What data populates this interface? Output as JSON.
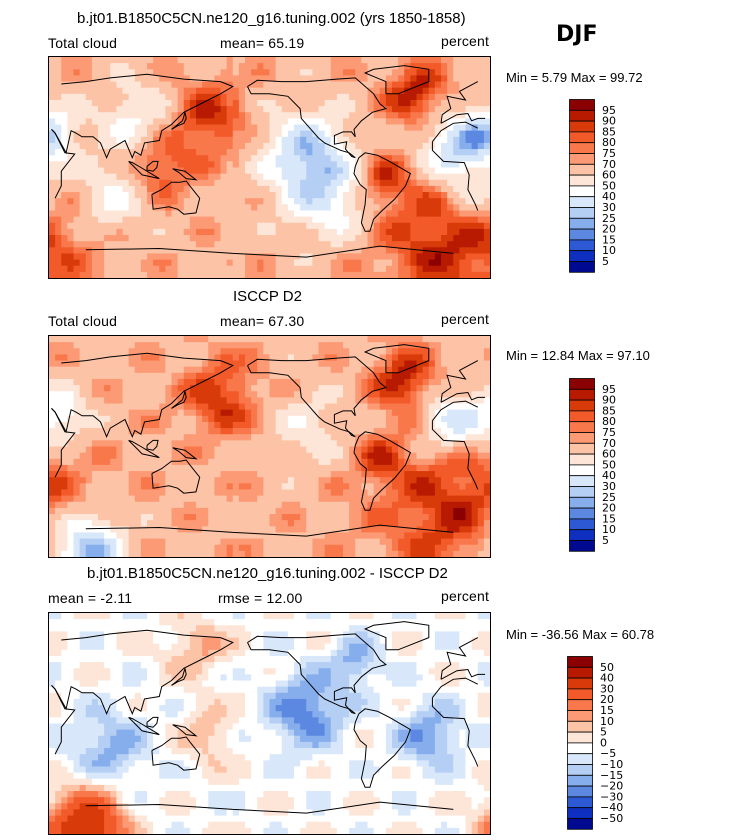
{
  "season": "DJF",
  "chart_data": [
    {
      "type": "heatmap",
      "title": "b.jt01.B1850C5CN.ne120_g16.tuning.002 (yrs 1850-1858)",
      "left_label": "Total cloud",
      "mean_label": "mean=  65.19",
      "units": "percent",
      "range_text": "Min =    5.79  Max =  99.72",
      "mean": 65.19,
      "min": 5.79,
      "max": 99.72,
      "colorbar": {
        "levels": [
          "95",
          "90",
          "85",
          "80",
          "75",
          "70",
          "60",
          "50",
          "40",
          "30",
          "25",
          "20",
          "15",
          "10",
          "5"
        ],
        "colors": [
          "#8b0000",
          "#b71a00",
          "#d93a0a",
          "#f25a2a",
          "#f9784b",
          "#fc9a75",
          "#fdc3a6",
          "#fde6d8",
          "#ffffff",
          "#d8e8fa",
          "#b4cef4",
          "#87aeec",
          "#5c88e2",
          "#2d5ad4",
          "#0f2fc0",
          "#000a90"
        ]
      },
      "fields": {
        "base": 68,
        "blobs": [
          {
            "lon": -120,
            "lat": 10,
            "r": 35,
            "amp": -38
          },
          {
            "lon": 0,
            "lat": 15,
            "r": 28,
            "amp": -38
          },
          {
            "lon": 30,
            "lat": 25,
            "r": 25,
            "amp": -32
          },
          {
            "lon": 100,
            "lat": 40,
            "r": 30,
            "amp": -20
          },
          {
            "lon": -100,
            "lat": -25,
            "r": 35,
            "amp": -25
          },
          {
            "lon": 15,
            "lat": -25,
            "r": 25,
            "amp": -20
          },
          {
            "lon": 80,
            "lat": -25,
            "r": 30,
            "amp": -22
          },
          {
            "lon": 160,
            "lat": 40,
            "r": 30,
            "amp": 22
          },
          {
            "lon": -30,
            "lat": 60,
            "r": 25,
            "amp": 25
          },
          {
            "lon": 120,
            "lat": 0,
            "r": 25,
            "amp": 20
          },
          {
            "lon": -60,
            "lat": -10,
            "r": 20,
            "amp": 20
          },
          {
            "lon": 0,
            "lat": -55,
            "r": 60,
            "amp": 25
          }
        ]
      }
    },
    {
      "type": "heatmap",
      "title": "ISCCP D2",
      "left_label": "Total cloud",
      "mean_label": "mean=  67.30",
      "units": "percent",
      "range_text": "Min =  12.84  Max =  97.10",
      "mean": 67.3,
      "min": 12.84,
      "max": 97.1,
      "colorbar": {
        "levels": [
          "95",
          "90",
          "85",
          "80",
          "75",
          "70",
          "60",
          "50",
          "40",
          "30",
          "25",
          "20",
          "15",
          "10",
          "5"
        ],
        "colors": [
          "#8b0000",
          "#b71a00",
          "#d93a0a",
          "#f25a2a",
          "#f9784b",
          "#fc9a75",
          "#fdc3a6",
          "#fde6d8",
          "#ffffff",
          "#d8e8fa",
          "#b4cef4",
          "#87aeec",
          "#5c88e2",
          "#2d5ad4",
          "#0f2fc0",
          "#000a90"
        ]
      },
      "fields": {
        "base": 68,
        "blobs": [
          {
            "lon": 0,
            "lat": 20,
            "r": 25,
            "amp": -35
          },
          {
            "lon": 40,
            "lat": 25,
            "r": 22,
            "amp": -28
          },
          {
            "lon": -120,
            "lat": 15,
            "r": 30,
            "amp": -15
          },
          {
            "lon": 170,
            "lat": 40,
            "r": 30,
            "amp": 22
          },
          {
            "lon": -40,
            "lat": 55,
            "r": 25,
            "amp": 25
          },
          {
            "lon": 0,
            "lat": -50,
            "r": 60,
            "amp": 22
          },
          {
            "lon": 60,
            "lat": -85,
            "r": 30,
            "amp": -50
          },
          {
            "lon": -60,
            "lat": -10,
            "r": 20,
            "amp": 15
          }
        ]
      }
    },
    {
      "type": "heatmap",
      "title": "b.jt01.B1850C5CN.ne120_g16.tuning.002 - ISCCP D2",
      "left_label": "mean =   -2.11",
      "mean_label": "rmse =   12.00",
      "units": "percent",
      "range_text": "Min = -36.56  Max =  60.78",
      "mean": -2.11,
      "rmse": 12.0,
      "min": -36.56,
      "max": 60.78,
      "colorbar": {
        "levels": [
          "50",
          "40",
          "30",
          "20",
          "15",
          "10",
          "5",
          "0",
          "−5",
          "−10",
          "−15",
          "−20",
          "−30",
          "−40",
          "−50"
        ],
        "colors": [
          "#8b0000",
          "#b71a00",
          "#d93a0a",
          "#f25a2a",
          "#f9784b",
          "#fc9a75",
          "#fdc3a6",
          "#fde6d8",
          "#ffffff",
          "#d8e8fa",
          "#b4cef4",
          "#87aeec",
          "#5c88e2",
          "#2d5ad4",
          "#0f2fc0",
          "#000a90"
        ]
      },
      "fields": {
        "base": -2,
        "blobs": [
          {
            "lon": -120,
            "lat": 10,
            "r": 30,
            "amp": -22
          },
          {
            "lon": -20,
            "lat": -10,
            "r": 25,
            "amp": -18
          },
          {
            "lon": 80,
            "lat": -20,
            "r": 30,
            "amp": -15
          },
          {
            "lon": 150,
            "lat": 60,
            "r": 25,
            "amp": 12
          },
          {
            "lon": 60,
            "lat": -85,
            "r": 30,
            "amp": 45
          },
          {
            "lon": -80,
            "lat": 50,
            "r": 20,
            "amp": -15
          },
          {
            "lon": 160,
            "lat": -10,
            "r": 20,
            "amp": 12
          }
        ]
      }
    }
  ]
}
